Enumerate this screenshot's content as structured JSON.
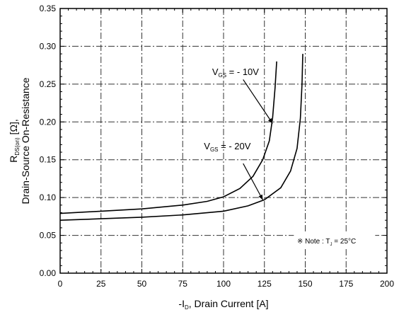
{
  "chart_data": {
    "type": "line",
    "title": "",
    "xlabel": "-I_D, Drain Current [A]",
    "ylabel_line1": "R_DS(on) [Ω],",
    "ylabel_line2": "Drain-Source On-Resistance",
    "xlim": [
      0,
      200
    ],
    "ylim": [
      0,
      0.35
    ],
    "x_ticks": [
      "0",
      "25",
      "50",
      "75",
      "100",
      "125",
      "150",
      "175",
      "200"
    ],
    "y_ticks": [
      "0.00",
      "0.05",
      "0.10",
      "0.15",
      "0.20",
      "0.25",
      "0.30",
      "0.35"
    ],
    "grid": true,
    "series": [
      {
        "name": "V_GS = - 10V",
        "x": [
          0,
          25,
          50,
          75,
          90,
          100,
          110,
          118,
          124,
          128,
          130,
          131.5,
          132.5
        ],
        "y": [
          0.079,
          0.082,
          0.085,
          0.09,
          0.095,
          0.101,
          0.112,
          0.128,
          0.15,
          0.175,
          0.205,
          0.245,
          0.28
        ]
      },
      {
        "name": "V_GS = - 20V",
        "x": [
          0,
          25,
          50,
          75,
          100,
          115,
          125,
          135,
          141,
          145,
          147,
          148,
          148.5
        ],
        "y": [
          0.07,
          0.072,
          0.074,
          0.077,
          0.082,
          0.089,
          0.097,
          0.113,
          0.135,
          0.165,
          0.205,
          0.25,
          0.29
        ]
      }
    ],
    "annotations": [
      {
        "id": "vgs10",
        "text": "V_GS = - 10V",
        "label_x": 93,
        "label_y": 0.262,
        "arrow_from": [
          112,
          0.256
        ],
        "arrow_to": [
          130,
          0.198
        ]
      },
      {
        "id": "vgs20",
        "text": "V_GS = - 20V",
        "label_x": 88,
        "label_y": 0.164,
        "arrow_from": [
          112,
          0.145
        ],
        "arrow_to": [
          124,
          0.097
        ]
      }
    ],
    "note": "※ Note : T_J = 25°C"
  }
}
